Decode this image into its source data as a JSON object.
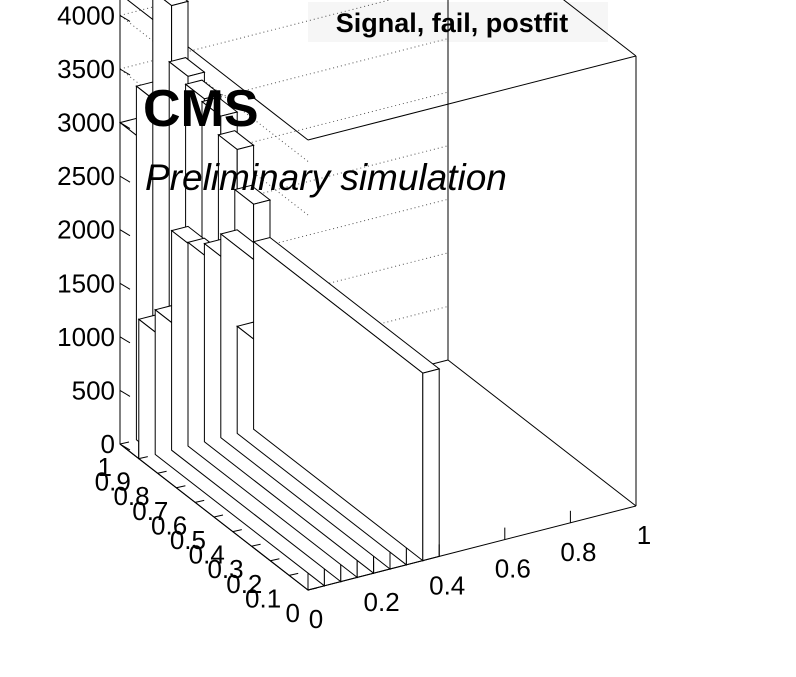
{
  "chart_data": {
    "type": "bar",
    "subtype": "lego-3d",
    "title": "Signal, fail, postfit",
    "experiment_label": "CMS",
    "status_label": "Preliminary simulation",
    "xlabel": "",
    "ylabel": "",
    "zlabel": "",
    "xlim": [
      0,
      1
    ],
    "ylim": [
      0,
      1
    ],
    "zlim": [
      0,
      4200
    ],
    "x_ticks": [
      "0",
      "0.2",
      "0.4",
      "0.6",
      "0.8",
      "1"
    ],
    "y_ticks": [
      "0",
      "0.1",
      "0.2",
      "0.3",
      "0.4",
      "0.5",
      "0.6",
      "0.7",
      "0.8",
      "0.9",
      "1"
    ],
    "z_ticks": [
      "0",
      "500",
      "1000",
      "1500",
      "2000",
      "2500",
      "3000",
      "3500",
      "4000"
    ],
    "x_bin_edges": [
      0,
      0.05,
      0.1,
      0.15,
      0.2,
      0.25,
      0.3,
      0.35,
      0.4
    ],
    "y_bin_edges": [
      0,
      0.9,
      1.0
    ],
    "bins": [
      {
        "x": [
          0.0,
          0.05
        ],
        "y": [
          0.0,
          0.9
        ],
        "value": 1300
      },
      {
        "x": [
          0.05,
          0.1
        ],
        "y": [
          0.0,
          0.9
        ],
        "value": 1350
      },
      {
        "x": [
          0.1,
          0.15
        ],
        "y": [
          0.0,
          0.9
        ],
        "value": 2050
      },
      {
        "x": [
          0.15,
          0.2
        ],
        "y": [
          0.0,
          0.9
        ],
        "value": 1900
      },
      {
        "x": [
          0.2,
          0.25
        ],
        "y": [
          0.0,
          0.9
        ],
        "value": 1850
      },
      {
        "x": [
          0.25,
          0.3
        ],
        "y": [
          0.0,
          0.9
        ],
        "value": 1900
      },
      {
        "x": [
          0.3,
          0.35
        ],
        "y": [
          0.0,
          0.9
        ],
        "value": 1000
      },
      {
        "x": [
          0.35,
          0.4
        ],
        "y": [
          0.0,
          0.9
        ],
        "value": 1750
      },
      {
        "x": [
          0.0,
          0.05
        ],
        "y": [
          0.9,
          1.0
        ],
        "value": 3000
      },
      {
        "x": [
          0.05,
          0.1
        ],
        "y": [
          0.9,
          1.0
        ],
        "value": 3300
      },
      {
        "x": [
          0.1,
          0.15
        ],
        "y": [
          0.9,
          1.0
        ],
        "value": 4150
      },
      {
        "x": [
          0.15,
          0.2
        ],
        "y": [
          0.9,
          1.0
        ],
        "value": 3450
      },
      {
        "x": [
          0.2,
          0.25
        ],
        "y": [
          0.9,
          1.0
        ],
        "value": 3200
      },
      {
        "x": [
          0.25,
          0.3
        ],
        "y": [
          0.9,
          1.0
        ],
        "value": 3000
      },
      {
        "x": [
          0.3,
          0.35
        ],
        "y": [
          0.9,
          1.0
        ],
        "value": 2650
      },
      {
        "x": [
          0.35,
          0.4
        ],
        "y": [
          0.9,
          1.0
        ],
        "value": 2100
      }
    ],
    "grid": true,
    "legend": "none"
  }
}
